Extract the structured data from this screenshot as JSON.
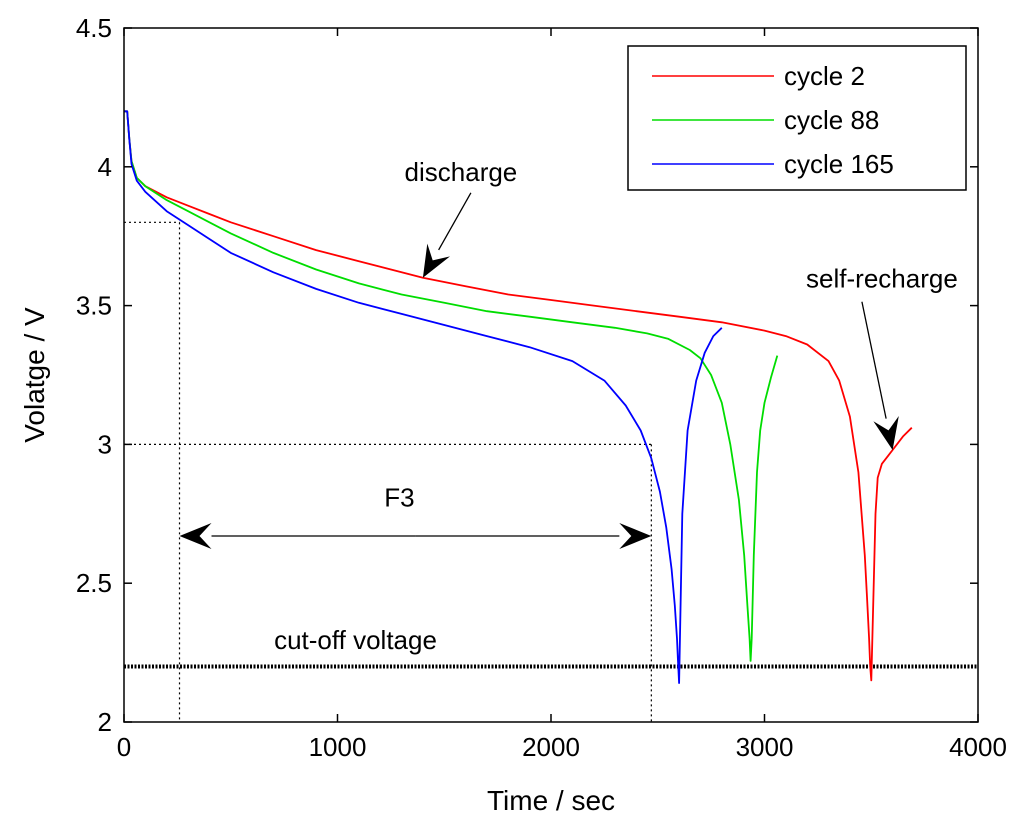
{
  "chart_data": {
    "type": "line",
    "title": "",
    "xlabel": "Time / sec",
    "ylabel": "Volatge / V",
    "xlim": [
      0,
      4000
    ],
    "ylim": [
      2,
      4.5
    ],
    "xticks": [
      0,
      1000,
      2000,
      3000,
      4000
    ],
    "xtick_labels": [
      "0",
      "1000",
      "2000",
      "3000",
      "4000"
    ],
    "yticks": [
      2,
      2.5,
      3,
      3.5,
      4,
      4.5
    ],
    "ytick_labels": [
      "2",
      "2.5",
      "3",
      "3.5",
      "4",
      "4.5"
    ],
    "grid": false,
    "legend_position": "top-right",
    "series": [
      {
        "name": "cycle 2",
        "color": "#ff0000",
        "x": [
          0,
          15,
          25,
          35,
          60,
          100,
          200,
          300,
          400,
          500,
          700,
          900,
          1100,
          1300,
          1400,
          1600,
          1800,
          2000,
          2200,
          2400,
          2600,
          2800,
          3000,
          3100,
          3200,
          3300,
          3350,
          3400,
          3440,
          3470,
          3480,
          3490,
          3495,
          3500,
          3510,
          3520,
          3530,
          3550,
          3600,
          3650,
          3690
        ],
        "y": [
          4.2,
          4.2,
          4.1,
          4.02,
          3.96,
          3.93,
          3.89,
          3.86,
          3.83,
          3.8,
          3.75,
          3.7,
          3.66,
          3.62,
          3.6,
          3.57,
          3.54,
          3.52,
          3.5,
          3.48,
          3.46,
          3.44,
          3.41,
          3.39,
          3.36,
          3.3,
          3.23,
          3.1,
          2.9,
          2.6,
          2.45,
          2.3,
          2.2,
          2.15,
          2.45,
          2.75,
          2.88,
          2.93,
          2.98,
          3.03,
          3.06
        ]
      },
      {
        "name": "cycle 88",
        "color": "#00dd00",
        "x": [
          0,
          15,
          25,
          35,
          60,
          100,
          200,
          300,
          400,
          500,
          700,
          900,
          1100,
          1300,
          1500,
          1700,
          1900,
          2100,
          2300,
          2450,
          2550,
          2650,
          2700,
          2750,
          2800,
          2840,
          2880,
          2905,
          2920,
          2930,
          2935,
          2940,
          2950,
          2965,
          2980,
          3000,
          3030,
          3060
        ],
        "y": [
          4.2,
          4.2,
          4.1,
          4.02,
          3.96,
          3.93,
          3.88,
          3.84,
          3.8,
          3.76,
          3.69,
          3.63,
          3.58,
          3.54,
          3.51,
          3.48,
          3.46,
          3.44,
          3.42,
          3.4,
          3.38,
          3.34,
          3.31,
          3.25,
          3.15,
          3.0,
          2.8,
          2.6,
          2.42,
          2.3,
          2.22,
          2.3,
          2.6,
          2.9,
          3.05,
          3.15,
          3.24,
          3.32
        ]
      },
      {
        "name": "cycle 165",
        "color": "#0000ff",
        "x": [
          0,
          15,
          25,
          35,
          60,
          100,
          200,
          300,
          400,
          500,
          700,
          900,
          1100,
          1300,
          1500,
          1700,
          1900,
          2100,
          2250,
          2350,
          2420,
          2470,
          2510,
          2540,
          2565,
          2580,
          2590,
          2595,
          2600,
          2605,
          2615,
          2640,
          2680,
          2720,
          2760,
          2800
        ],
        "y": [
          4.2,
          4.2,
          4.1,
          4.01,
          3.95,
          3.91,
          3.84,
          3.79,
          3.74,
          3.69,
          3.62,
          3.56,
          3.51,
          3.47,
          3.43,
          3.39,
          3.35,
          3.3,
          3.23,
          3.14,
          3.05,
          2.95,
          2.83,
          2.7,
          2.55,
          2.42,
          2.3,
          2.22,
          2.14,
          2.35,
          2.75,
          3.05,
          3.23,
          3.33,
          3.39,
          3.42
        ]
      }
    ],
    "reference_lines": {
      "cutoff_y": 2.2,
      "dotted_guides": [
        {
          "x1": 0,
          "y1": 3.8,
          "x2": 260,
          "y2": 3.8
        },
        {
          "x1": 260,
          "y1": 3.8,
          "x2": 260,
          "y2": 2.0
        },
        {
          "x1": 0,
          "y1": 3.0,
          "x2": 2470,
          "y2": 3.0
        },
        {
          "x1": 2470,
          "y1": 3.0,
          "x2": 2470,
          "y2": 2.0
        }
      ]
    },
    "annotations": {
      "discharge": {
        "text": "discharge",
        "text_x": 1400,
        "text_y": 4.0,
        "head_x": 1400,
        "head_y": 3.6
      },
      "self_recharge": {
        "text": "self-recharge",
        "text_x": 3550,
        "text_y": 3.55,
        "head_x": 3600,
        "head_y": 2.98
      },
      "f3": {
        "text": "F3",
        "text_x": 1200,
        "text_y": 2.82,
        "x_start": 260,
        "x_end": 2470,
        "y": 2.67
      },
      "cutoff": {
        "text": "cut-off voltage",
        "text_x": 1000,
        "text_y": 2.32
      }
    }
  }
}
